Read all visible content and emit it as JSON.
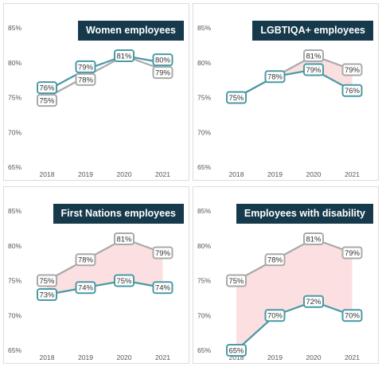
{
  "colors": {
    "compare_line": "#a9a9a9",
    "group_line": "#4a9aa5",
    "gap_fill": "#fbdfe1",
    "title_bg": "#163a4c"
  },
  "chart_data": [
    {
      "type": "line",
      "title": "Women employees",
      "categories": [
        "2018",
        "2019",
        "2020",
        "2021"
      ],
      "ylim": [
        65,
        85
      ],
      "yticks": [
        "65%",
        "70%",
        "75%",
        "80%",
        "85%"
      ],
      "fill_between": false,
      "series": [
        {
          "role": "compare",
          "values": [
            75,
            78,
            81,
            79
          ],
          "labels": [
            "75%",
            "78%",
            "",
            "79%"
          ]
        },
        {
          "role": "group",
          "values": [
            76,
            79,
            81,
            80
          ],
          "labels": [
            "76%",
            "79%",
            "81%",
            "80%"
          ]
        }
      ]
    },
    {
      "type": "line",
      "title": "LGBTIQA+ employees",
      "categories": [
        "2018",
        "2019",
        "2020",
        "2021"
      ],
      "ylim": [
        65,
        85
      ],
      "yticks": [
        "65%",
        "70%",
        "75%",
        "80%",
        "85%"
      ],
      "fill_between": true,
      "series": [
        {
          "role": "compare",
          "values": [
            75,
            78,
            81,
            79
          ],
          "labels": [
            "",
            "",
            "81%",
            "79%"
          ]
        },
        {
          "role": "group",
          "values": [
            75,
            78,
            79,
            76
          ],
          "labels": [
            "75%",
            "78%",
            "79%",
            "76%"
          ]
        }
      ]
    },
    {
      "type": "line",
      "title": "First Nations employees",
      "categories": [
        "2018",
        "2019",
        "2020",
        "2021"
      ],
      "ylim": [
        65,
        85
      ],
      "yticks": [
        "65%",
        "70%",
        "75%",
        "80%",
        "85%"
      ],
      "fill_between": true,
      "series": [
        {
          "role": "compare",
          "values": [
            75,
            78,
            81,
            79
          ],
          "labels": [
            "75%",
            "78%",
            "81%",
            "79%"
          ]
        },
        {
          "role": "group",
          "values": [
            73,
            74,
            75,
            74
          ],
          "labels": [
            "73%",
            "74%",
            "75%",
            "74%"
          ]
        }
      ]
    },
    {
      "type": "line",
      "title": "Employees with disability",
      "categories": [
        "2018",
        "2019",
        "2020",
        "2021"
      ],
      "ylim": [
        65,
        85
      ],
      "yticks": [
        "65%",
        "70%",
        "75%",
        "80%",
        "85%"
      ],
      "fill_between": true,
      "series": [
        {
          "role": "compare",
          "values": [
            75,
            78,
            81,
            79
          ],
          "labels": [
            "75%",
            "78%",
            "81%",
            "79%"
          ]
        },
        {
          "role": "group",
          "values": [
            65,
            70,
            72,
            70
          ],
          "labels": [
            "65%",
            "70%",
            "72%",
            "70%"
          ]
        }
      ]
    }
  ]
}
